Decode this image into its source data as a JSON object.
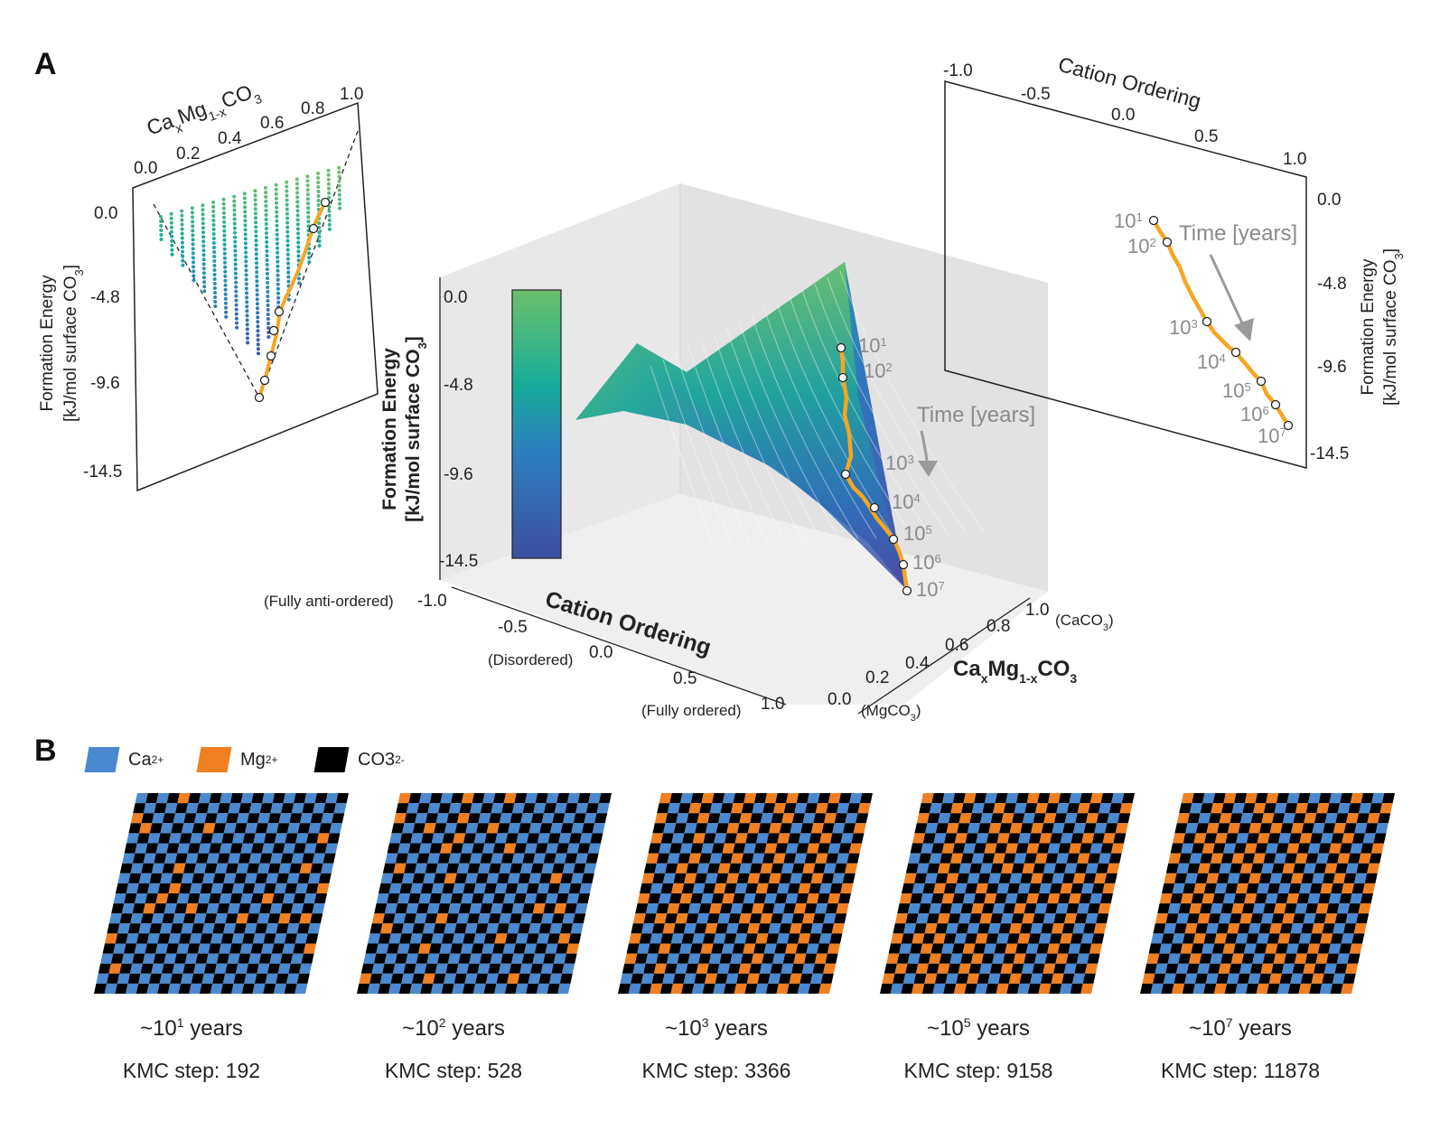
{
  "panels": {
    "a": "A",
    "b": "B"
  },
  "left_plot": {
    "title_parts": [
      "Ca",
      "x",
      "Mg",
      "1-x",
      "CO",
      "3"
    ],
    "x_ticks": [
      "0.0",
      "0.2",
      "0.4",
      "0.6",
      "0.8",
      "1.0"
    ],
    "y_ticks": [
      "0.0",
      "-4.8",
      "-9.6",
      "-14.5"
    ],
    "ylabel_line1": "Formation Energy",
    "ylabel_line2": "[kJ/mol surface CO",
    "ylabel_sub": "3",
    "ylabel_close": "]"
  },
  "center_plot": {
    "z_ticks": [
      "0.0",
      "-4.8",
      "-9.6",
      "-14.5"
    ],
    "zlabel_line1": "Formation Energy",
    "zlabel_line2": "[kJ/mol surface CO",
    "zlabel_sub": "3",
    "zlabel_close": "]",
    "ordering_ticks": [
      "-1.0",
      "-0.5",
      "0.0",
      "0.5",
      "1.0"
    ],
    "ordering_label": "Cation Ordering",
    "ordering_notes": [
      "(Fully anti-ordered)",
      "(Disordered)",
      "(Fully ordered)"
    ],
    "comp_ticks": [
      "0.0",
      "0.2",
      "0.4",
      "0.6",
      "0.8",
      "1.0"
    ],
    "comp_notes": [
      "(MgCO",
      "3",
      ")",
      "(CaCO",
      "3",
      ")"
    ],
    "comp_label_parts": [
      "Ca",
      "x",
      "Mg",
      "1-x",
      "CO",
      "3"
    ],
    "time_label": "Time [years]",
    "time_marks": [
      "10",
      "1",
      "10",
      "2",
      "10",
      "3",
      "10",
      "4",
      "10",
      "5",
      "10",
      "6",
      "10",
      "7"
    ]
  },
  "right_plot": {
    "title": "Cation Ordering",
    "x_ticks": [
      "-1.0",
      "-0.5",
      "0.0",
      "0.5",
      "1.0"
    ],
    "y_ticks": [
      "0.0",
      "-4.8",
      "-9.6",
      "-14.5"
    ],
    "ylabel_line1": "Formation Energy",
    "ylabel_line2": "[kJ/mol surface CO",
    "ylabel_sub": "3",
    "ylabel_close": "]",
    "time_label": "Time [years]"
  },
  "legend": {
    "items": [
      {
        "label": "Ca",
        "sup": "2+",
        "color": "#4a88d0"
      },
      {
        "label": "Mg",
        "sup": "2+",
        "color": "#f07f22"
      },
      {
        "label": "CO3",
        "sup": "2-",
        "color": "#000000"
      }
    ]
  },
  "snapshots": [
    {
      "time_base": "~10",
      "time_exp": "1",
      "time_unit": " years",
      "kmc": "KMC step: 192",
      "mg_fraction": 0.15
    },
    {
      "time_base": "~10",
      "time_exp": "2",
      "time_unit": " years",
      "kmc": "KMC step: 528",
      "mg_fraction": 0.25
    },
    {
      "time_base": "~10",
      "time_exp": "3",
      "time_unit": " years",
      "kmc": "KMC step: 3366",
      "mg_fraction": 0.5
    },
    {
      "time_base": "~10",
      "time_exp": "5",
      "time_unit": " years",
      "kmc": "KMC step: 9158",
      "mg_fraction": 0.5
    },
    {
      "time_base": "~10",
      "time_exp": "7",
      "time_unit": " years",
      "kmc": "KMC step: 11878",
      "mg_fraction": 0.5
    }
  ],
  "colors": {
    "ca": "#4a88d0",
    "mg": "#f07f22",
    "co3": "#000000",
    "trajectory": "#f5a623",
    "arrow": "#9a9a9a"
  }
}
